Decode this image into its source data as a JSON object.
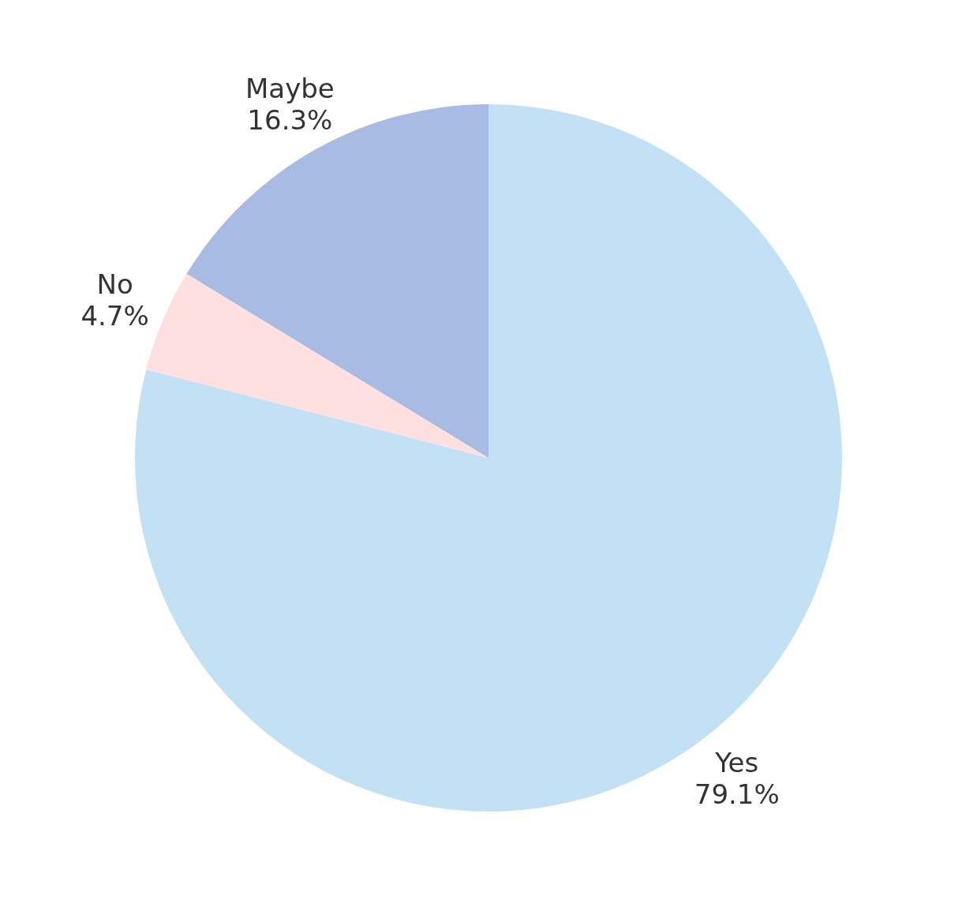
{
  "chart_data": {
    "type": "pie",
    "categories": [
      "Yes",
      "No",
      "Maybe"
    ],
    "values": [
      79.1,
      4.7,
      16.3
    ],
    "value_labels": [
      "79.1%",
      "4.7%",
      "16.3%"
    ],
    "colors": [
      "#c3e1f5",
      "#fde0df",
      "#a8bce3"
    ],
    "legend": false
  }
}
